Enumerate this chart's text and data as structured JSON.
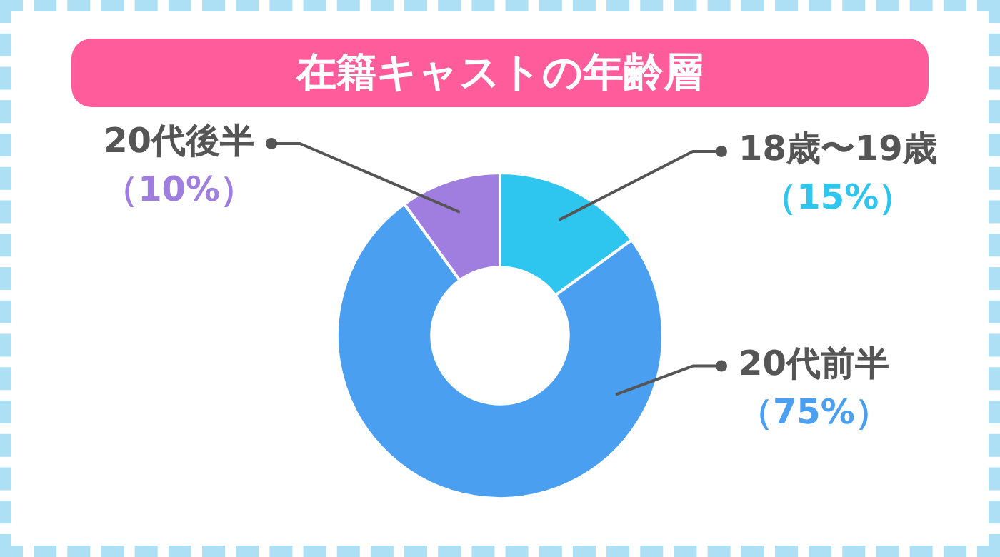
{
  "chart_data": {
    "type": "donut",
    "title": "在籍キャストの年齢層",
    "categories": [
      "18歳〜19歳",
      "20代前半",
      "20代後半"
    ],
    "values": [
      15,
      75,
      10
    ],
    "colors": [
      "#2ec5ee",
      "#4b9ff0",
      "#a07ee0"
    ],
    "value_labels": [
      "（15%）",
      "（75%）",
      "（10%）"
    ]
  }
}
